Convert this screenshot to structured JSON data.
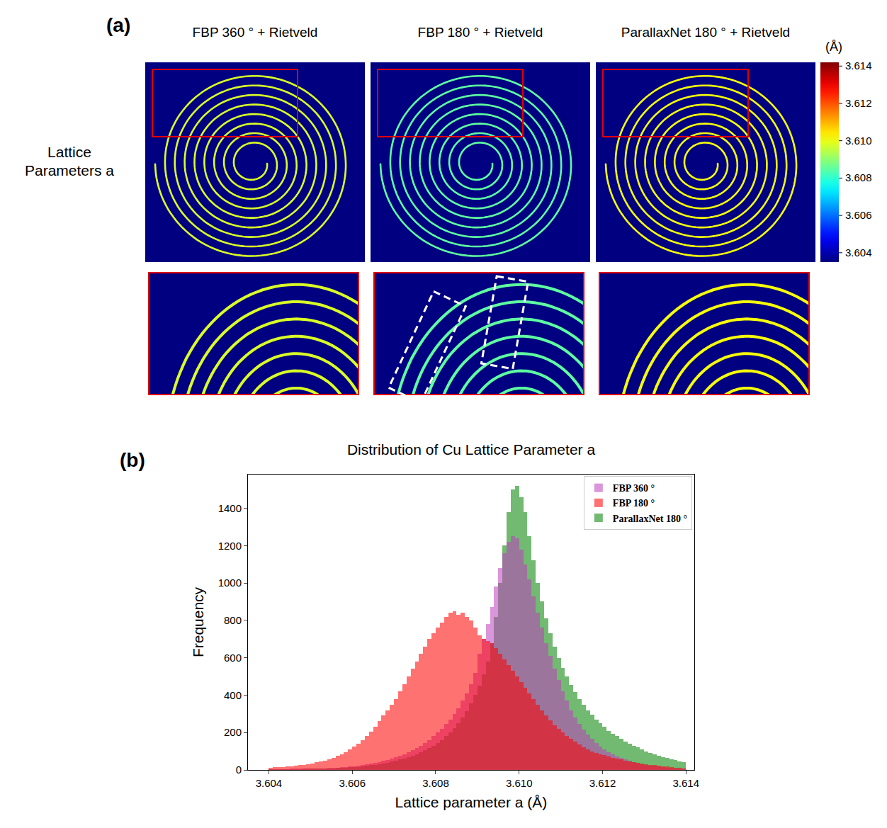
{
  "panel_a": {
    "label": "(a)",
    "row_label": "Lattice Parameters a",
    "unit": "(Å)",
    "colorbar": {
      "range": [
        3.6035,
        3.6142
      ],
      "ticks": [
        3.604,
        3.606,
        3.608,
        {
          "value": 3.61,
          "label": "3.610"
        },
        3.612,
        3.614
      ]
    },
    "panels": [
      {
        "title": "FBP 360 ° + Rietveld",
        "value": 3.6098
      },
      {
        "title": "FBP 180 ° + Rietveld",
        "value": 3.6085
      },
      {
        "title": "ParallaxNet 180 ° + Rietveld",
        "value": 3.6101
      }
    ]
  },
  "chart_data": {
    "type": "histogram",
    "panel_label": "(b)",
    "title": "Distribution of Cu Lattice Parameter a",
    "x_label": "Lattice parameter a (Å)",
    "y_label": "Frequency",
    "bins": [
      3.604,
      3.6041,
      3.6042,
      3.6043,
      3.6044,
      3.6045,
      3.6046,
      3.6047,
      3.6048,
      3.6049,
      3.605,
      3.6051,
      3.6052,
      3.6053,
      3.6054,
      3.6055,
      3.6056,
      3.6057,
      3.6058,
      3.6059,
      3.606,
      3.6061,
      3.6062,
      3.6063,
      3.6064,
      3.6065,
      3.6066,
      3.6067,
      3.6068,
      3.6069,
      3.607,
      3.6071,
      3.6072,
      3.6073,
      3.6074,
      3.6075,
      3.6076,
      3.6077,
      3.6078,
      3.6079,
      3.608,
      3.6081,
      3.6082,
      3.6083,
      3.6084,
      3.6085,
      3.6086,
      3.6087,
      3.6088,
      3.6089,
      3.609,
      3.6091,
      3.6092,
      3.6093,
      3.6094,
      3.6095,
      3.6096,
      3.6097,
      3.6098,
      3.6099,
      3.61,
      3.6101,
      3.6102,
      3.6103,
      3.6104,
      3.6105,
      3.6106,
      3.6107,
      3.6108,
      3.6109,
      3.611,
      3.6111,
      3.6112,
      3.6113,
      3.6114,
      3.6115,
      3.6116,
      3.6117,
      3.6118,
      3.6119,
      3.612,
      3.6121,
      3.6122,
      3.6123,
      3.6124,
      3.6125,
      3.6126,
      3.6127,
      3.6128,
      3.6129,
      3.613,
      3.6131,
      3.6132,
      3.6133,
      3.6134,
      3.6135,
      3.6136,
      3.6137,
      3.6138,
      3.6139,
      3.614
    ],
    "series": [
      {
        "name": "FBP 360 °",
        "color": "#bf3fbf",
        "values": [
          2,
          2,
          3,
          3,
          3,
          4,
          4,
          5,
          5,
          6,
          6,
          7,
          8,
          9,
          10,
          11,
          12,
          14,
          16,
          18,
          20,
          23,
          26,
          30,
          34,
          38,
          43,
          48,
          54,
          60,
          68,
          76,
          85,
          95,
          105,
          118,
          130,
          145,
          160,
          180,
          200,
          220,
          245,
          270,
          300,
          330,
          370,
          410,
          460,
          520,
          620,
          700,
          780,
          870,
          980,
          1080,
          1160,
          1220,
          1250,
          1240,
          1180,
          1100,
          1020,
          930,
          840,
          760,
          680,
          610,
          540,
          480,
          420,
          370,
          320,
          280,
          245,
          215,
          190,
          165,
          145,
          125,
          110,
          95,
          82,
          72,
          63,
          55,
          48,
          42,
          37,
          32,
          28,
          24,
          21,
          18,
          15,
          12,
          10,
          8,
          6,
          5
        ]
      },
      {
        "name": "FBP 180 °",
        "color": "#ff0000",
        "values": [
          12,
          14,
          15,
          16,
          18,
          20,
          22,
          25,
          28,
          32,
          35,
          40,
          45,
          50,
          58,
          66,
          75,
          85,
          95,
          110,
          125,
          140,
          160,
          180,
          205,
          230,
          260,
          290,
          320,
          350,
          380,
          420,
          460,
          500,
          540,
          580,
          620,
          660,
          700,
          730,
          760,
          790,
          820,
          840,
          850,
          830,
          840,
          820,
          800,
          760,
          720,
          700,
          690,
          680,
          650,
          620,
          590,
          560,
          530,
          500,
          470,
          440,
          410,
          380,
          350,
          320,
          290,
          265,
          240,
          220,
          200,
          180,
          165,
          150,
          135,
          120,
          110,
          100,
          92,
          85,
          78,
          72,
          66,
          60,
          55,
          50,
          46,
          42,
          38,
          35,
          32,
          28,
          25,
          22,
          20,
          18,
          15,
          13,
          11,
          9
        ]
      },
      {
        "name": "ParallaxNet 180 °",
        "color": "#008000",
        "values": [
          1,
          1,
          2,
          2,
          2,
          3,
          3,
          3,
          4,
          4,
          5,
          5,
          6,
          7,
          8,
          9,
          10,
          11,
          12,
          14,
          15,
          17,
          19,
          22,
          25,
          28,
          31,
          35,
          39,
          44,
          49,
          55,
          61,
          68,
          76,
          85,
          95,
          105,
          118,
          130,
          145,
          160,
          180,
          200,
          225,
          250,
          280,
          315,
          355,
          400,
          450,
          510,
          580,
          680,
          820,
          1000,
          1200,
          1380,
          1500,
          1520,
          1460,
          1380,
          1250,
          1120,
          1000,
          900,
          810,
          730,
          660,
          600,
          545,
          500,
          455,
          415,
          380,
          350,
          320,
          295,
          270,
          250,
          230,
          210,
          195,
          180,
          165,
          150,
          140,
          130,
          120,
          110,
          100,
          92,
          84,
          76,
          70,
          64,
          58,
          52,
          46,
          40
        ]
      }
    ],
    "xlim": [
      3.6035,
      3.6142
    ],
    "xticks": [
      3.604,
      3.606,
      3.608,
      {
        "value": 3.61,
        "label": "3.610"
      },
      3.612,
      3.614
    ],
    "ylim": [
      0,
      1580
    ],
    "yticks": [
      0,
      200,
      400,
      600,
      800,
      1000,
      1200,
      1400
    ],
    "legend": "upper right",
    "grid": false
  }
}
